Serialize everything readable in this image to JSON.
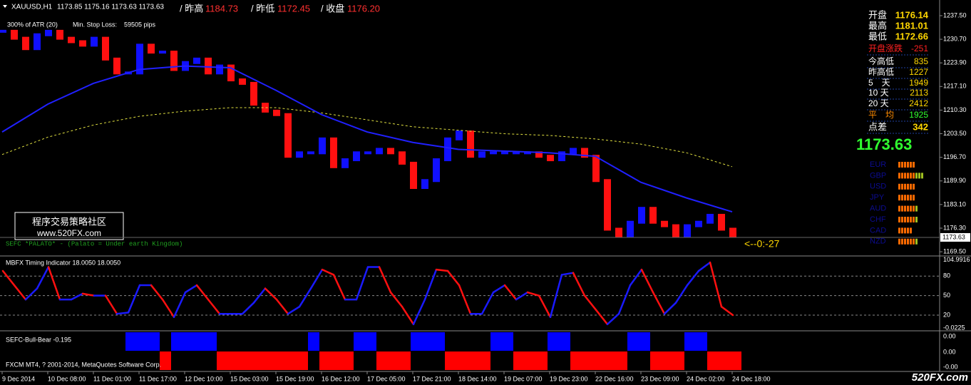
{
  "header": {
    "symbol": "XAUUSD,H1",
    "ohlc": "1173.85 1175.16 1173.63 1173.63",
    "prev_high_label": "/ 昨高",
    "prev_high": "1184.73",
    "prev_low_label": "/ 昨低",
    "prev_low": "1172.45",
    "close_label": "/ 收盘",
    "close": "1176.20"
  },
  "atr": {
    "label": "300% of ATR (20)",
    "stop_label": "Min. Stop Loss:",
    "stop": "59505 pips"
  },
  "watermark": {
    "line1": "程序交易策略社区",
    "line2": "www.520FX.com"
  },
  "indicator_note": "SEFC *PALATO* - (Palato = Under earth Kingdom)",
  "timer": "<--0:-27",
  "price_chart": {
    "type": "bar",
    "ylim": [
      1168.7,
      1241.6
    ],
    "yticks": [
      {
        "value": 1237.5,
        "label": "1237.50"
      },
      {
        "value": 1230.7,
        "label": "1230.70"
      },
      {
        "value": 1223.9,
        "label": "1223.90"
      },
      {
        "value": 1217.1,
        "label": "1217.10"
      },
      {
        "value": 1210.3,
        "label": "1210.30"
      },
      {
        "value": 1203.5,
        "label": "1203.50"
      },
      {
        "value": 1196.7,
        "label": "1196.70"
      },
      {
        "value": 1189.9,
        "label": "1189.90"
      },
      {
        "value": 1183.1,
        "label": "1183.10"
      },
      {
        "value": 1176.3,
        "label": "1176.30"
      },
      {
        "value": 1169.5,
        "label": "1169.50"
      }
    ],
    "closes": [
      1233,
      1231,
      1228,
      1232,
      1233,
      1231,
      1230,
      1229,
      1231,
      1225,
      1221,
      1221,
      1229,
      1227,
      1227,
      1222,
      1224,
      1225,
      1221,
      1223,
      1219,
      1218,
      1212,
      1210,
      1209,
      1197,
      1198,
      1198,
      1202,
      1194,
      1196,
      1198,
      1198,
      1199,
      1198,
      1195,
      1188,
      1190,
      1196,
      1202,
      1204,
      1197,
      1198,
      1198,
      1198,
      1198,
      1198,
      1197,
      1196,
      1198,
      1199,
      1197,
      1190,
      1176,
      1174,
      1178,
      1182,
      1178,
      1177,
      1174,
      1177,
      1178,
      1180,
      1176,
      1174
    ],
    "ma": [
      1204,
      1212,
      1218,
      1222,
      1223,
      1222.5,
      1216,
      1209,
      1204,
      1201,
      1199,
      1198.5,
      1198,
      1197,
      1189.5,
      1185,
      1181
    ],
    "ma_slow": [
      1197.5,
      1202.5,
      1206,
      1208.5,
      1210,
      1211,
      1211,
      1209.5,
      1207.5,
      1205.5,
      1204.5,
      1203.5,
      1203,
      1202,
      1200.5,
      1198,
      1194
    ],
    "last_price": {
      "value": 1173.63,
      "label": "1173.63"
    }
  },
  "x_labels": [
    "9 Dec 2014",
    "10 Dec 08:00",
    "11 Dec 01:00",
    "11 Dec 17:00",
    "12 Dec 10:00",
    "15 Dec 03:00",
    "15 Dec 19:00",
    "16 Dec 12:00",
    "17 Dec 05:00",
    "17 Dec 21:00",
    "18 Dec 14:00",
    "19 Dec 07:00",
    "19 Dec 23:00",
    "22 Dec 16:00",
    "23 Dec 09:00",
    "24 Dec 02:00",
    "24 Dec 18:00"
  ],
  "timing": {
    "title": "MBFX Timing Indicator 18.0050 18.0050",
    "ylim": [
      -3,
      105.5
    ],
    "yticks": [
      {
        "value": 104.9916,
        "label": "104.9916"
      },
      80,
      50,
      20,
      {
        "value": -0.0225,
        "label": "-0.0225"
      }
    ],
    "values": [
      88,
      66,
      44,
      61,
      94,
      44,
      44,
      53,
      50,
      50,
      22,
      24,
      66,
      66,
      44,
      17,
      55,
      66,
      44,
      22,
      22,
      22,
      39,
      61,
      44,
      22,
      33,
      61,
      90,
      82,
      44,
      44,
      94,
      94,
      55,
      33,
      6,
      44,
      90,
      88,
      66,
      22,
      22,
      55,
      66,
      44,
      55,
      50,
      17,
      82,
      85,
      50,
      28,
      6,
      22,
      66,
      90,
      55,
      22,
      39,
      66,
      88,
      101,
      33,
      20
    ]
  },
  "bull_bear": {
    "title": "SEFC-Bull-Bear -0.195",
    "axis_labels": [
      "0.00",
      "0.00",
      "-0.00"
    ],
    "states": [
      0,
      0,
      0,
      0,
      0,
      0,
      0,
      0,
      0,
      0,
      0,
      1,
      1,
      1,
      -1,
      1,
      1,
      1,
      1,
      -1,
      -1,
      -1,
      -1,
      -1,
      -1,
      -1,
      -1,
      1,
      -1,
      -1,
      -1,
      1,
      1,
      -1,
      -1,
      -1,
      1,
      1,
      1,
      -1,
      -1,
      -1,
      -1,
      1,
      1,
      -1,
      -1,
      -1,
      1,
      1,
      -1,
      -1,
      -1,
      -1,
      -1,
      1,
      1,
      -1,
      -1,
      -1,
      1,
      1,
      -1,
      -1,
      -1
    ]
  },
  "info_panel": {
    "rows": [
      {
        "label": "开盘",
        "value": "1176.14"
      },
      {
        "label": "最高",
        "value": "1181.01"
      },
      {
        "label": "最低",
        "value": "1172.66"
      },
      {
        "label": "开盘涨跌",
        "value": "-251"
      },
      {
        "label": "今高低",
        "value": "835"
      },
      {
        "label": "昨高低",
        "value": "1227"
      },
      {
        "label": "5　天",
        "value": "1949"
      },
      {
        "label": "10 天",
        "value": "2113"
      },
      {
        "label": "20 天",
        "value": "2412"
      },
      {
        "label": "平　均",
        "value": "1925"
      },
      {
        "label": "点差",
        "value": "342"
      }
    ],
    "price": "1173.63",
    "currencies": [
      {
        "name": "EUR",
        "strength": 6
      },
      {
        "name": "GBP",
        "strength": 9
      },
      {
        "name": "USD",
        "strength": 6
      },
      {
        "name": "JPY",
        "strength": 6
      },
      {
        "name": "AUD",
        "strength": 7
      },
      {
        "name": "CHF",
        "strength": 7
      },
      {
        "name": "CAD",
        "strength": 5
      },
      {
        "name": "NZD",
        "strength": 7
      }
    ]
  },
  "footer": {
    "copyright": "FXCM MT4, ? 2001-2014, MetaQuotes Software Corp.",
    "logo": "520FX.com"
  }
}
